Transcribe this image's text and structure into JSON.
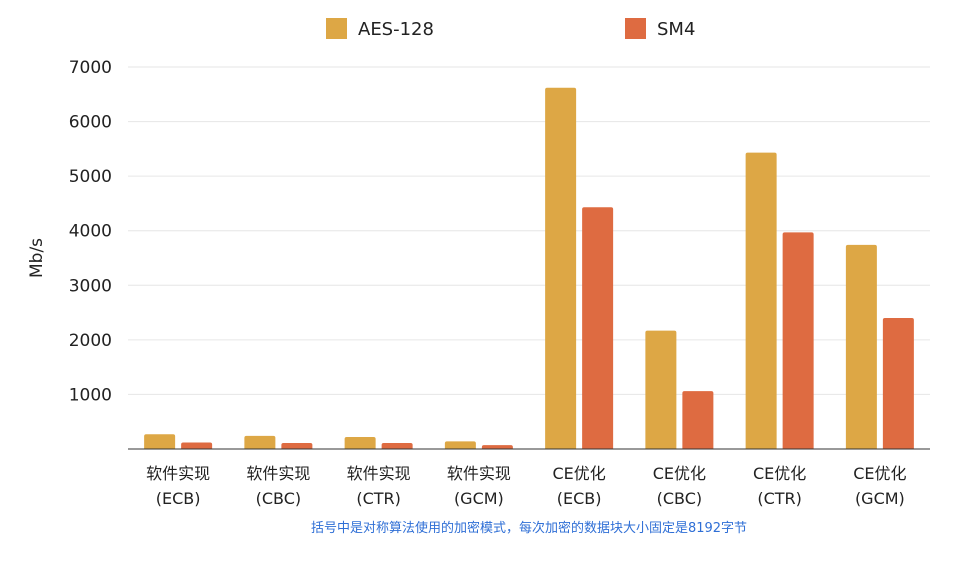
{
  "chart_data": {
    "type": "bar",
    "ylabel": "Mb/s",
    "ylim": [
      0,
      7000
    ],
    "yticks": [
      1000,
      2000,
      3000,
      4000,
      5000,
      6000,
      7000
    ],
    "grid": true,
    "legend_position": "top-center",
    "categories": [
      [
        "软件实现",
        "(ECB)"
      ],
      [
        "软件实现",
        "(CBC)"
      ],
      [
        "软件实现",
        "(CTR)"
      ],
      [
        "软件实现",
        "(GCM)"
      ],
      [
        "CE优化",
        "(ECB)"
      ],
      [
        "CE优化",
        "(CBC)"
      ],
      [
        "CE优化",
        "(CTR)"
      ],
      [
        "CE优化",
        "(GCM)"
      ]
    ],
    "series": [
      {
        "name": "AES-128",
        "color": "#DDA745",
        "values": [
          270,
          240,
          220,
          140,
          6620,
          2170,
          5430,
          3740
        ]
      },
      {
        "name": "SM4",
        "color": "#DE6B41",
        "values": [
          120,
          110,
          110,
          70,
          4430,
          1060,
          3970,
          2400
        ]
      }
    ],
    "note": "括号中是对称算法使用的加密模式，每次加密的数据块大小固定是8192字节"
  }
}
